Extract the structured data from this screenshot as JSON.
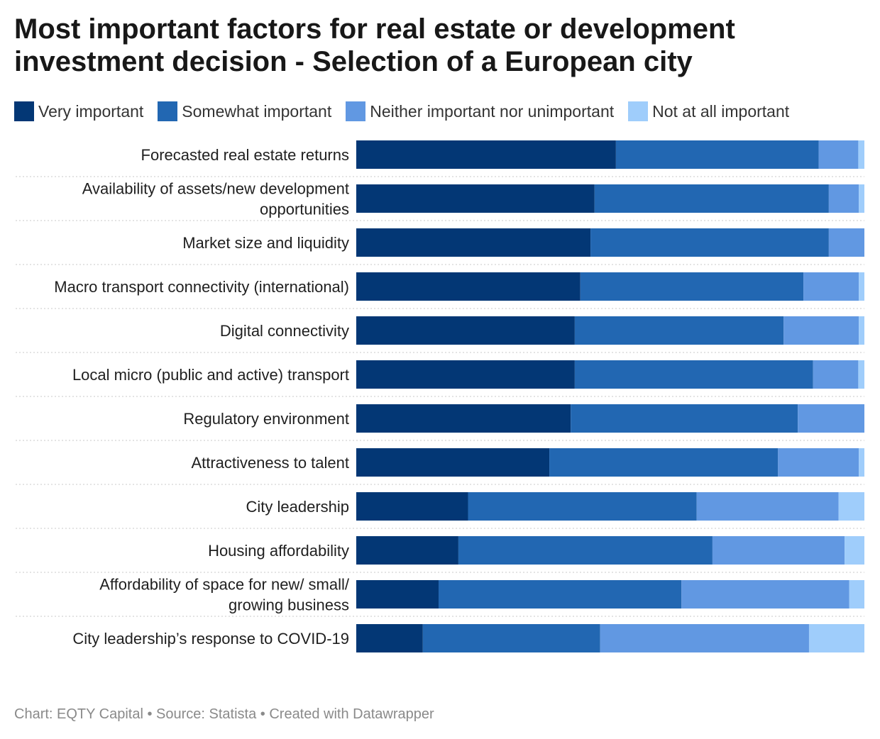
{
  "title": "Most important factors for real estate or development investment decision - Selection of a European city",
  "footer": "Chart: EQTY Capital • Source: Statista • Created with Datawrapper",
  "colors": {
    "very": "#033775",
    "somewhat": "#2267b2",
    "neither": "#6198e2",
    "not_at_all": "#9fcdfb"
  },
  "chart_data": {
    "type": "bar",
    "orientation": "horizontal",
    "stacked": true,
    "unit": "%",
    "xlim": [
      0,
      100
    ],
    "legend_position": "top",
    "grid": false,
    "categories": [
      "Forecasted real estate returns",
      "Availability of assets/new development opportunities",
      "Market size and liquidity",
      "Macro transport connectivity (international)",
      "Digital connectivity",
      "Local micro (public and active) transport",
      "Regulatory environment",
      "Attractiveness to talent",
      "City leadership",
      "Housing affordability",
      "Affordability of space for new/ small/ growing business",
      "City leadership’s response to COVID-19"
    ],
    "category_lines": [
      [
        "Forecasted real estate returns"
      ],
      [
        "Availability of assets/new development",
        "opportunities"
      ],
      [
        "Market size and liquidity"
      ],
      [
        "Macro transport connectivity (international)"
      ],
      [
        "Digital connectivity"
      ],
      [
        "Local micro (public and active) transport"
      ],
      [
        "Regulatory environment"
      ],
      [
        "Attractiveness to talent"
      ],
      [
        "City leadership"
      ],
      [
        "Housing affordability"
      ],
      [
        "Affordability of space for new/ small/",
        "growing business"
      ],
      [
        "City leadership’s response to COVID-19"
      ]
    ],
    "series": [
      {
        "name": "Very important",
        "color": "#033775",
        "values": [
          51.1,
          46.9,
          46.1,
          44.1,
          43.0,
          43.0,
          42.2,
          38.0,
          22.0,
          20.1,
          16.2,
          13.1
        ]
      },
      {
        "name": "Somewhat important",
        "color": "#2267b2",
        "values": [
          39.9,
          46.1,
          46.9,
          43.9,
          41.1,
          46.9,
          44.7,
          45.0,
          45.0,
          50.0,
          47.8,
          34.9
        ]
      },
      {
        "name": "Neither important nor unimportant",
        "color": "#6198e2",
        "values": [
          7.8,
          5.9,
          7.0,
          10.9,
          14.8,
          8.9,
          13.1,
          15.9,
          27.9,
          26.0,
          33.0,
          41.1
        ]
      },
      {
        "name": "Not at all important",
        "color": "#9fcdfb",
        "values": [
          1.2,
          1.1,
          0.0,
          1.1,
          1.1,
          1.2,
          0.0,
          1.1,
          5.1,
          3.9,
          3.0,
          10.9
        ]
      }
    ]
  }
}
